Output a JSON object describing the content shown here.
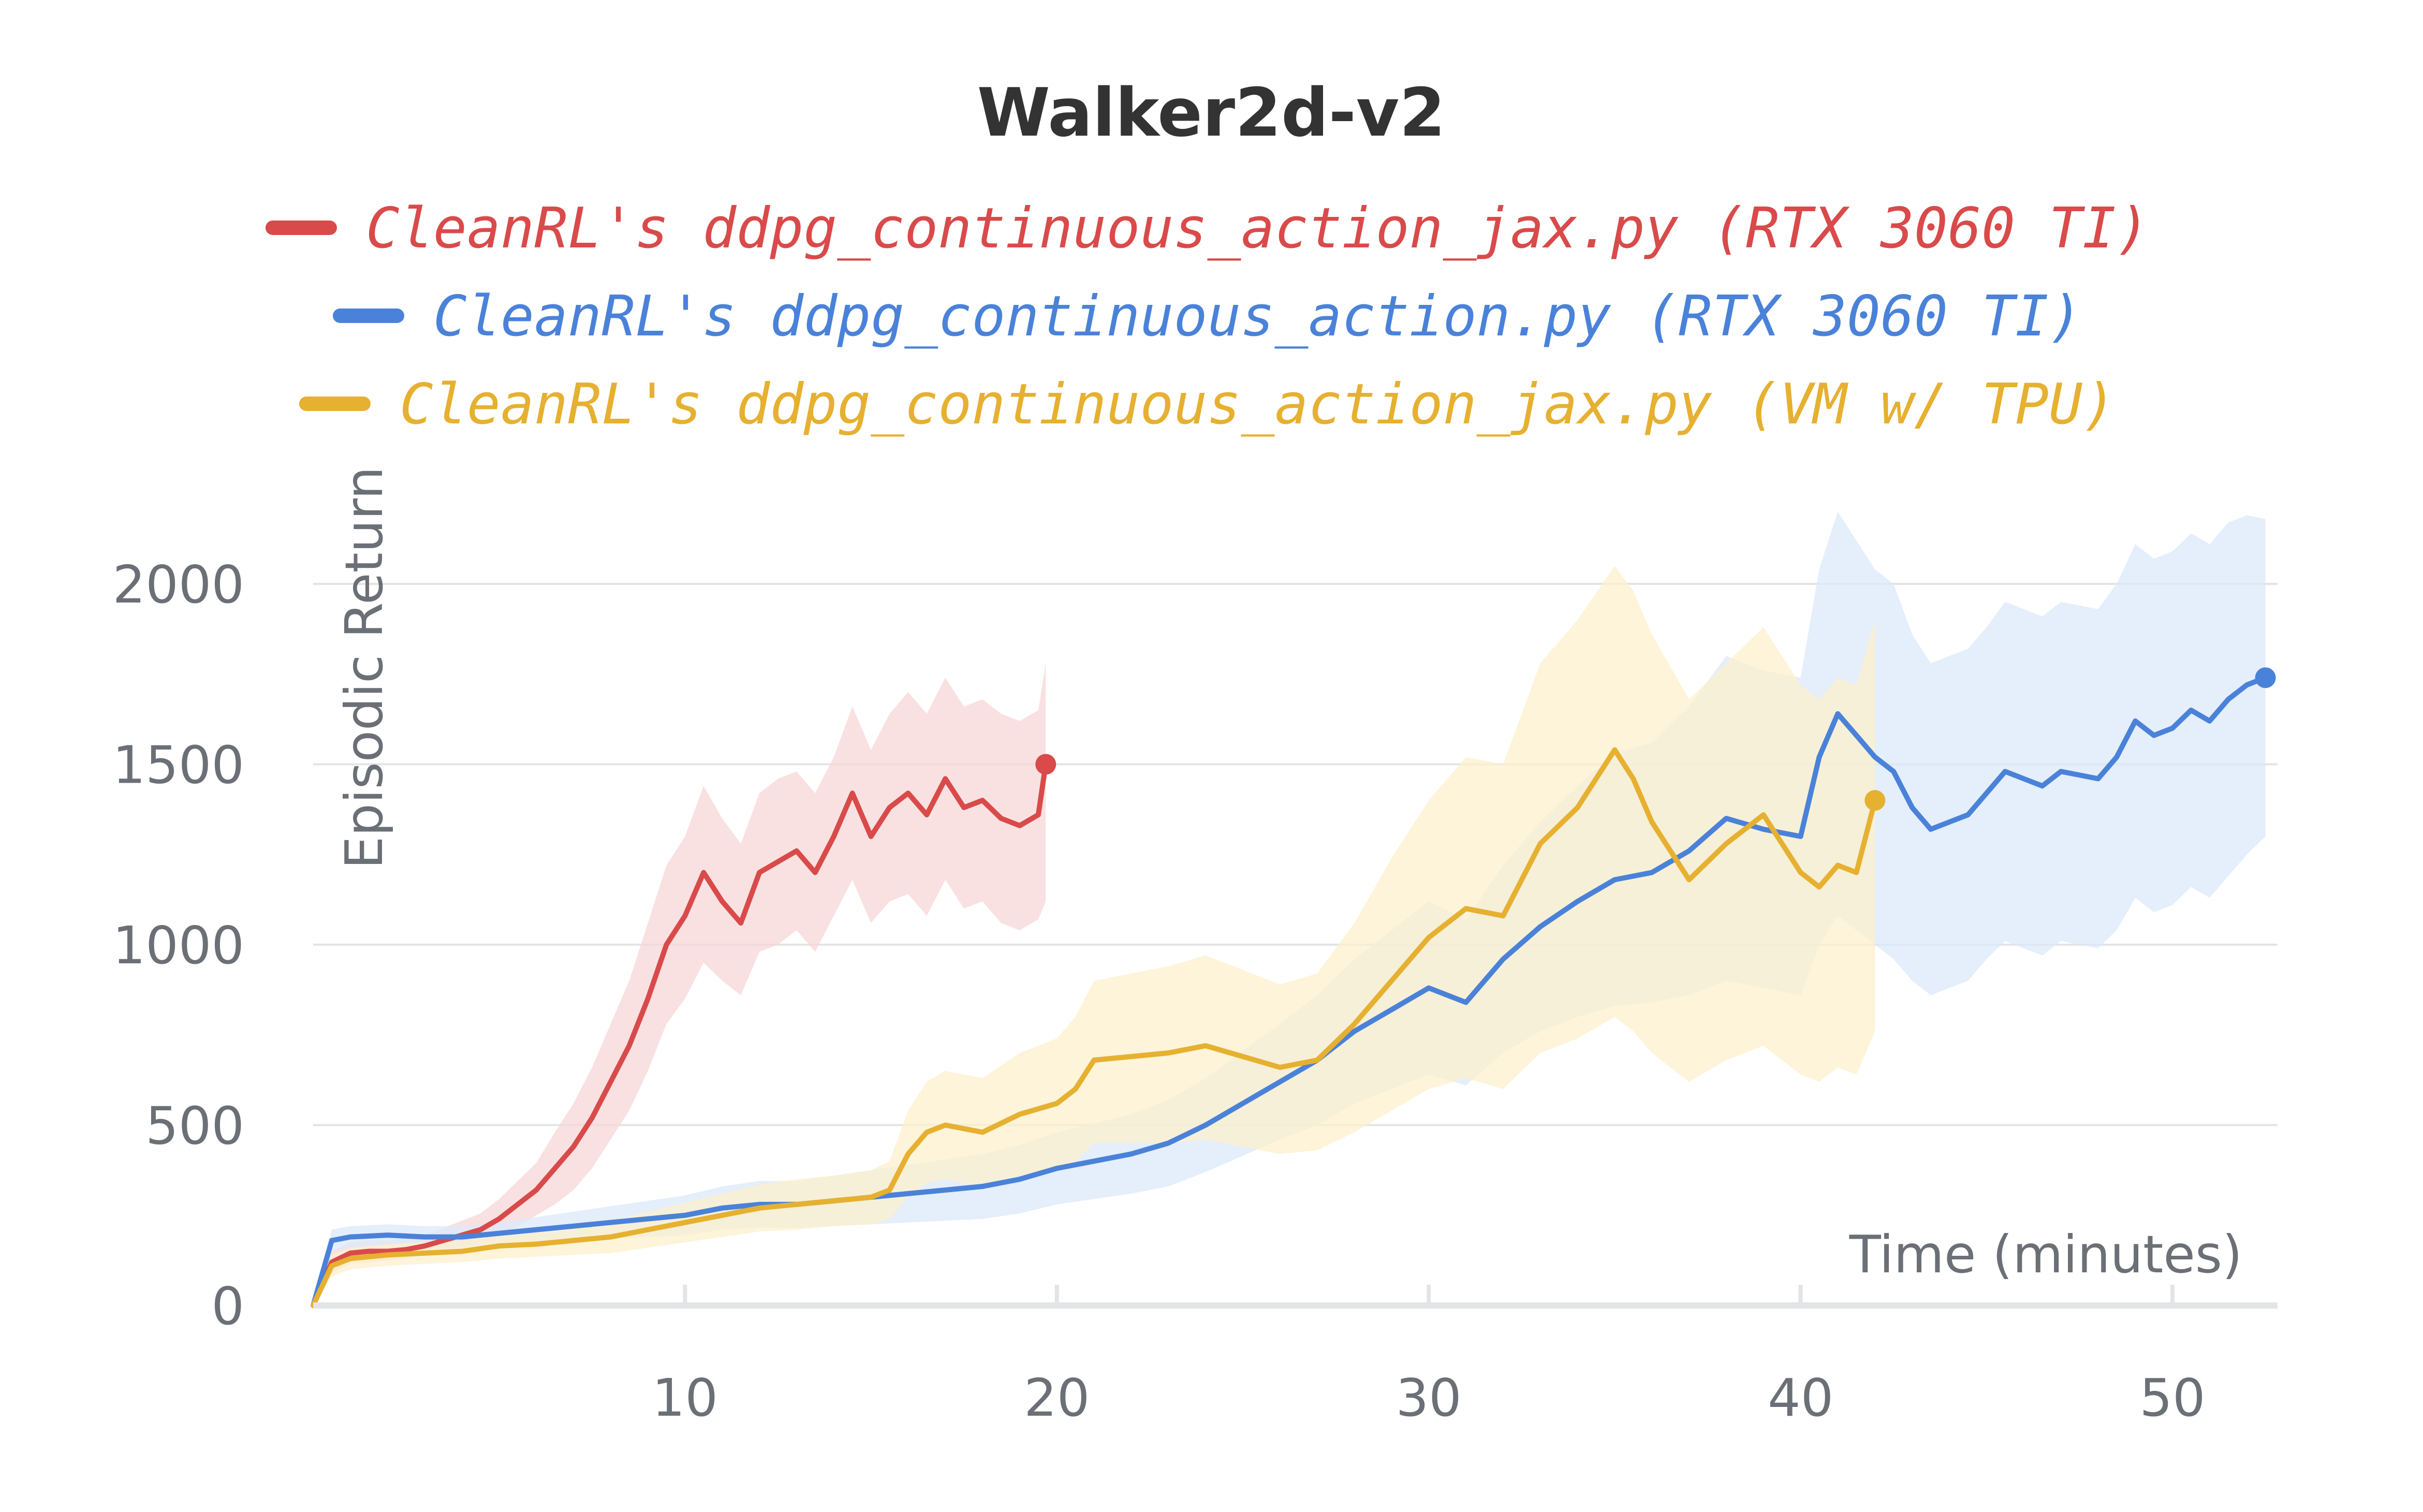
{
  "chart_data": {
    "type": "line",
    "title": "Walker2d-v2",
    "xlabel": "Time (minutes)",
    "ylabel": "Episodic Return",
    "xlim": [
      0,
      52.5
    ],
    "ylim": [
      0,
      2150
    ],
    "x_ticks": [
      10,
      20,
      30,
      40,
      50
    ],
    "y_ticks": [
      0,
      500,
      1000,
      1500,
      2000
    ],
    "grid": "horizontal",
    "legend_position": "top-center",
    "series": [
      {
        "name": "CleanRL's ddpg_continuous_action_jax.py (RTX 3060 TI)",
        "color": "#d94a4a",
        "band_color": "#f7d7d7",
        "x": [
          0,
          0.5,
          1,
          1.5,
          2,
          2.5,
          3,
          3.5,
          4,
          4.5,
          5,
          5.5,
          6,
          6.5,
          7,
          7.5,
          8,
          8.5,
          9,
          9.5,
          10,
          10.5,
          11,
          11.5,
          12,
          12.5,
          13,
          13.5,
          14,
          14.5,
          15,
          15.5,
          16,
          16.5,
          17,
          17.5,
          18,
          18.5,
          19,
          19.5,
          19.7
        ],
        "y": [
          0,
          120,
          145,
          150,
          150,
          155,
          165,
          180,
          195,
          210,
          240,
          280,
          320,
          380,
          440,
          520,
          620,
          720,
          850,
          1000,
          1080,
          1200,
          1120,
          1060,
          1200,
          1230,
          1260,
          1200,
          1300,
          1420,
          1300,
          1380,
          1420,
          1360,
          1460,
          1380,
          1400,
          1350,
          1330,
          1360,
          1500
        ],
        "lower": [
          0,
          90,
          115,
          120,
          125,
          130,
          140,
          150,
          160,
          170,
          190,
          220,
          250,
          280,
          320,
          380,
          460,
          540,
          650,
          780,
          850,
          950,
          900,
          860,
          980,
          1000,
          1040,
          980,
          1080,
          1180,
          1060,
          1120,
          1140,
          1080,
          1180,
          1100,
          1120,
          1060,
          1040,
          1070,
          1120
        ],
        "upper": [
          0,
          150,
          175,
          180,
          180,
          185,
          195,
          215,
          235,
          255,
          295,
          345,
          395,
          480,
          560,
          660,
          780,
          900,
          1060,
          1220,
          1300,
          1440,
          1350,
          1280,
          1420,
          1460,
          1480,
          1420,
          1520,
          1660,
          1540,
          1640,
          1700,
          1640,
          1740,
          1660,
          1680,
          1640,
          1620,
          1650,
          1780
        ]
      },
      {
        "name": "CleanRL's ddpg_continuous_action.py (RTX 3060 TI)",
        "color": "#4a82d9",
        "band_color": "#dce8fa",
        "x": [
          0,
          0.5,
          1,
          2,
          3,
          4,
          5,
          6,
          7,
          8,
          9,
          10,
          11,
          12,
          13,
          14,
          15,
          16,
          17,
          18,
          19,
          20,
          21,
          22,
          23,
          24,
          25,
          26,
          27,
          28,
          29,
          30,
          31,
          32,
          33,
          34,
          35,
          36,
          37,
          38,
          39,
          40,
          40.5,
          41,
          41.5,
          42,
          42.5,
          43,
          43.5,
          44,
          44.5,
          45,
          45.5,
          46,
          46.5,
          47,
          47.5,
          48,
          48.5,
          49,
          49.5,
          50,
          50.5,
          51,
          51.5,
          52,
          52.5
        ],
        "y": [
          0,
          180,
          190,
          195,
          190,
          190,
          200,
          210,
          220,
          230,
          240,
          250,
          270,
          280,
          280,
          290,
          300,
          310,
          320,
          330,
          350,
          380,
          400,
          420,
          450,
          500,
          560,
          620,
          680,
          760,
          820,
          880,
          840,
          960,
          1050,
          1120,
          1180,
          1200,
          1260,
          1350,
          1320,
          1300,
          1520,
          1640,
          1580,
          1520,
          1480,
          1380,
          1320,
          1340,
          1360,
          1420,
          1480,
          1460,
          1440,
          1480,
          1470,
          1460,
          1520,
          1620,
          1580,
          1600,
          1650,
          1620,
          1680,
          1720,
          1740
        ],
        "lower": [
          0,
          150,
          160,
          165,
          160,
          160,
          170,
          175,
          180,
          185,
          190,
          195,
          210,
          215,
          215,
          220,
          225,
          230,
          235,
          240,
          255,
          280,
          295,
          310,
          330,
          370,
          415,
          460,
          500,
          560,
          600,
          640,
          610,
          700,
          760,
          800,
          830,
          840,
          860,
          900,
          880,
          860,
          1000,
          1080,
          1040,
          1000,
          960,
          900,
          860,
          880,
          900,
          960,
          1010,
          990,
          970,
          1010,
          1000,
          990,
          1040,
          1130,
          1090,
          1110,
          1160,
          1130,
          1190,
          1250,
          1300
        ],
        "upper": [
          0,
          210,
          220,
          225,
          220,
          220,
          230,
          245,
          260,
          275,
          290,
          305,
          330,
          345,
          345,
          360,
          375,
          390,
          405,
          420,
          445,
          480,
          505,
          530,
          570,
          630,
          705,
          780,
          860,
          960,
          1040,
          1120,
          1070,
          1220,
          1340,
          1440,
          1530,
          1560,
          1660,
          1800,
          1760,
          1740,
          2040,
          2200,
          2120,
          2040,
          2000,
          1860,
          1780,
          1800,
          1820,
          1880,
          1950,
          1930,
          1910,
          1950,
          1940,
          1930,
          2000,
          2110,
          2070,
          2090,
          2140,
          2110,
          2170,
          2190,
          2180
        ]
      },
      {
        "name": "CleanRL's ddpg_continuous_action_jax.py (VM w/ TPU)",
        "color": "#e6b030",
        "band_color": "#fcf0cc",
        "x": [
          0,
          0.5,
          1,
          2,
          3,
          4,
          5,
          6,
          7,
          8,
          9,
          10,
          11,
          12,
          13,
          14,
          15,
          15.5,
          16,
          16.5,
          17,
          18,
          19,
          20,
          20.5,
          21,
          22,
          23,
          24,
          25,
          26,
          27,
          28,
          29,
          30,
          31,
          32,
          33,
          34,
          35,
          35.5,
          36,
          37,
          38,
          39,
          40,
          40.5,
          41,
          41.5,
          42
        ],
        "y": [
          0,
          110,
          130,
          140,
          145,
          150,
          165,
          170,
          180,
          190,
          210,
          230,
          250,
          270,
          280,
          290,
          300,
          320,
          420,
          480,
          500,
          480,
          530,
          560,
          600,
          680,
          690,
          700,
          720,
          690,
          660,
          680,
          780,
          900,
          1020,
          1100,
          1080,
          1280,
          1380,
          1540,
          1460,
          1340,
          1180,
          1280,
          1360,
          1200,
          1160,
          1220,
          1200,
          1400
        ],
        "lower": [
          0,
          80,
          100,
          110,
          115,
          120,
          130,
          135,
          140,
          145,
          160,
          175,
          190,
          205,
          210,
          220,
          225,
          240,
          300,
          340,
          350,
          330,
          360,
          380,
          400,
          450,
          450,
          450,
          460,
          440,
          420,
          430,
          480,
          540,
          600,
          630,
          600,
          700,
          740,
          800,
          760,
          700,
          620,
          680,
          720,
          640,
          620,
          660,
          640,
          760
        ],
        "upper": [
          0,
          140,
          160,
          170,
          175,
          180,
          200,
          205,
          220,
          235,
          260,
          285,
          310,
          335,
          350,
          360,
          375,
          400,
          540,
          620,
          650,
          630,
          700,
          740,
          800,
          900,
          920,
          940,
          970,
          930,
          890,
          920,
          1060,
          1240,
          1400,
          1520,
          1500,
          1780,
          1900,
          2050,
          1980,
          1860,
          1680,
          1780,
          1880,
          1720,
          1680,
          1740,
          1720,
          1900
        ]
      }
    ]
  }
}
